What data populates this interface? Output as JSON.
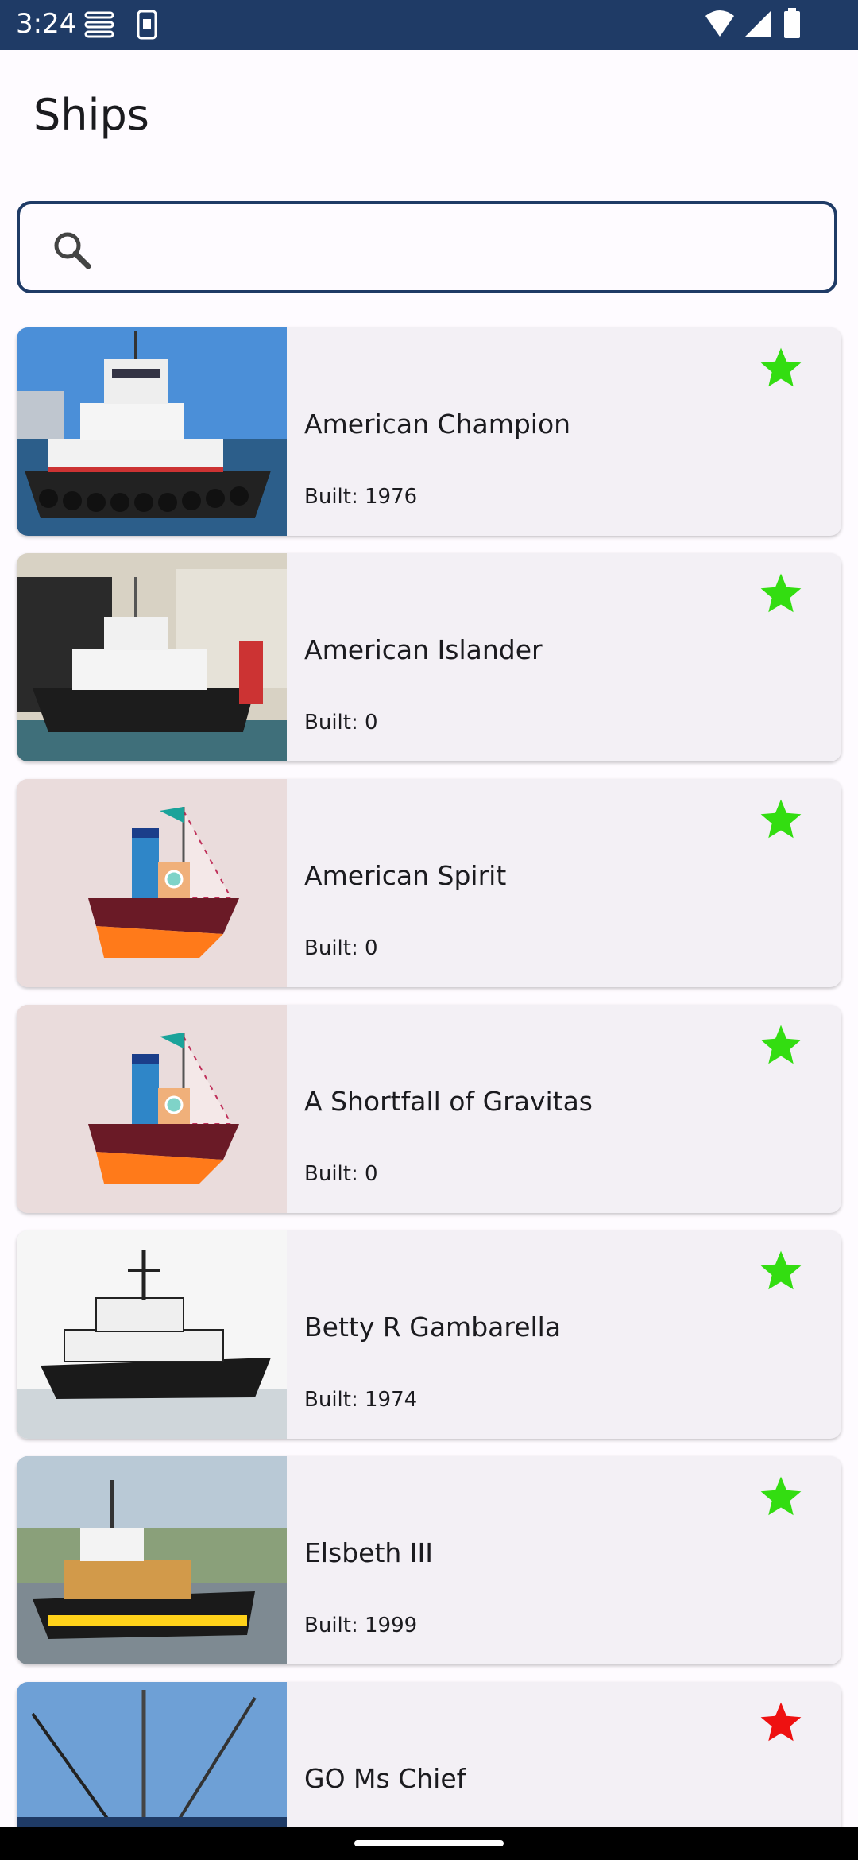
{
  "status_bar": {
    "time": "3:24"
  },
  "app_bar": {
    "title": "Ships"
  },
  "search": {
    "value": "",
    "placeholder": ""
  },
  "ships": [
    {
      "name": "American Champion",
      "built": "Built: 1976",
      "favorite_color": "#33dd11",
      "image": "tug-photo-champion"
    },
    {
      "name": "American Islander",
      "built": "Built: 0",
      "favorite_color": "#33dd11",
      "image": "tug-photo-islander"
    },
    {
      "name": "American Spirit",
      "built": "Built: 0",
      "favorite_color": "#33dd11",
      "image": "cartoon-boat-placeholder"
    },
    {
      "name": "A Shortfall of Gravitas",
      "built": "Built: 0",
      "favorite_color": "#33dd11",
      "image": "cartoon-boat-placeholder"
    },
    {
      "name": "Betty R Gambarella",
      "built": "Built: 1974",
      "favorite_color": "#33dd11",
      "image": "tug-photo-betty"
    },
    {
      "name": "Elsbeth III",
      "built": "Built: 1999",
      "favorite_color": "#33dd11",
      "image": "tug-photo-elsbeth"
    },
    {
      "name": "GO Ms Chief",
      "built": "",
      "favorite_color": "#ee1111",
      "image": "ship-photo-chief"
    }
  ],
  "colors": {
    "status_bar": "#1f3b66",
    "card_bg": "#f3f0f5",
    "search_border": "#1f3b66"
  }
}
